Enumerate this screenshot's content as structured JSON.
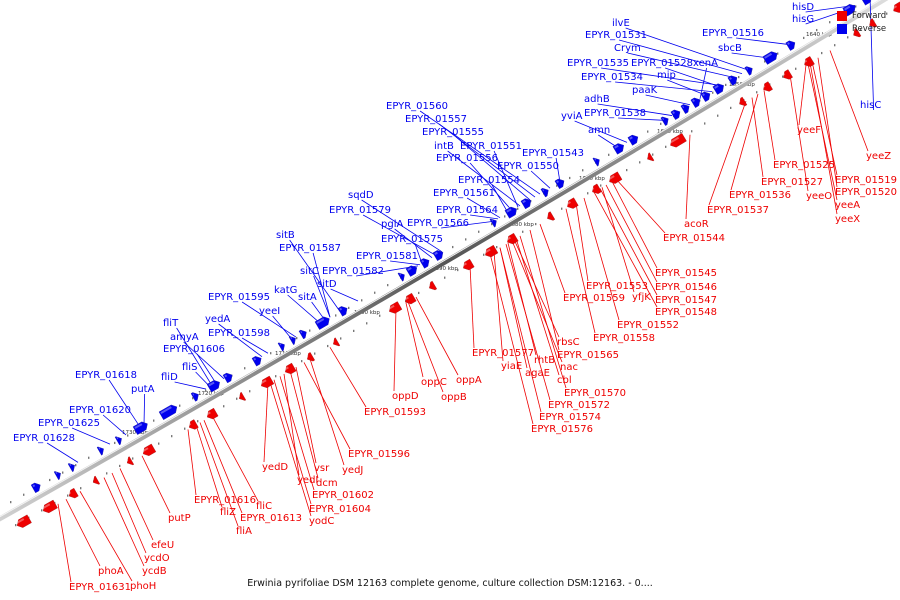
{
  "title": "Erwinia pyrifoliae DSM 12163 complete genome, culture collection DSM:12163. - 0....",
  "colors": {
    "forward": "#ee0000",
    "reverse": "#0000ee",
    "backbone": "#999999"
  },
  "legend": [
    {
      "label": "Forward",
      "color": "#ee0000"
    },
    {
      "label": "Reverse",
      "color": "#0000ee"
    }
  ],
  "ticks": [
    "1640 kbp",
    "1650 kbp",
    "1660 kbp",
    "1670 kbp",
    "1680 kbp",
    "1690 kbp",
    "1700 kbp",
    "1710 kbp",
    "1720 kbp",
    "1730 kbp"
  ],
  "reverse_labels": [
    "hisD",
    "hisG",
    "EPYR_01516",
    "sbcB",
    "ilvE",
    "EPYR_01531",
    "Crym",
    "EPYR_01535",
    "EPYR_01528",
    "EPYR_01534",
    "mip",
    "xenA",
    "paaK",
    "adhB",
    "EPYR_01538",
    "yviA",
    "amn",
    "EPYR_01560",
    "EPYR_01557",
    "EPYR_01555",
    "intB",
    "EPYR_01551",
    "EPYR_01556",
    "EPYR_01543",
    "EPYR_01550",
    "EPYR_01554",
    "sqdD",
    "EPYR_01561",
    "EPYR_01579",
    "EPYR_01564",
    "pglA",
    "EPYR_01566",
    "EPYR_01575",
    "sitB",
    "EPYR_01587",
    "EPYR_01581",
    "sitC",
    "EPYR_01582",
    "katG",
    "sitD",
    "sitA",
    "EPYR_01595",
    "yeeI",
    "fliT",
    "yedA",
    "amyA",
    "EPYR_01598",
    "EPYR_01606",
    "fliS",
    "fliD",
    "EPYR_01618",
    "putA",
    "EPYR_01620",
    "EPYR_01625",
    "EPYR_01628",
    "hisC"
  ],
  "forward_labels": [
    "yeeF",
    "yeeZ",
    "EPYR_01525",
    "EPYR_01519",
    "EPYR_01527",
    "yeeO",
    "EPYR_01520",
    "yeeA",
    "yeeX",
    "EPYR_01536",
    "EPYR_01537",
    "acoR",
    "EPYR_01544",
    "EPYR_01545",
    "EPYR_01546",
    "EPYR_01553",
    "EPYR_01547",
    "EPYR_01559",
    "yfjK",
    "EPYR_01548",
    "EPYR_01552",
    "EPYR_01558",
    "rbsC",
    "EPYR_01565",
    "EPYR_01577",
    "rhtB",
    "nac",
    "yiaE",
    "agaE",
    "cbl",
    "EPYR_01570",
    "EPYR_01572",
    "EPYR_01574",
    "EPYR_01576",
    "oppA",
    "oppC",
    "oppB",
    "oppD",
    "EPYR_01593",
    "EPYR_01596",
    "yedJ",
    "vsr",
    "yedD",
    "yedI",
    "dcm",
    "EPYR_01602",
    "EPYR_01604",
    "yodC",
    "EPYR_01616",
    "fliC",
    "fliZ",
    "EPYR_01613",
    "fliA",
    "putP",
    "efeU",
    "ycdO",
    "ycdB",
    "phoA",
    "EPYR_01631",
    "phoH"
  ]
}
